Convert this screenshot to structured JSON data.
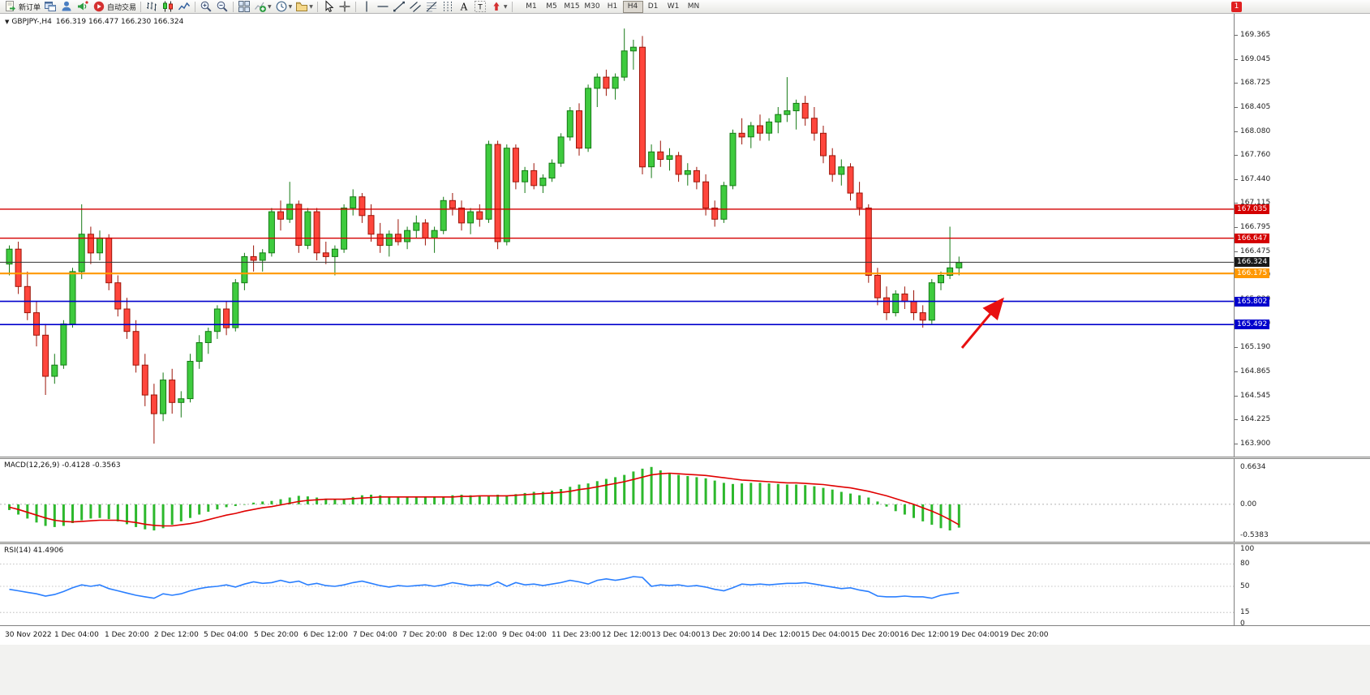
{
  "toolbar": {
    "badge": "1",
    "items": [
      {
        "name": "new-order",
        "icon": "new-order-icon",
        "label": "新订单"
      },
      {
        "name": "charts-window",
        "icon": "charts-window-icon"
      },
      {
        "name": "market-watch",
        "icon": "market-watch-icon"
      },
      {
        "name": "news",
        "icon": "news-icon"
      },
      {
        "name": "auto-trading",
        "icon": "auto-trading-icon",
        "label": "自动交易"
      },
      {
        "sep": true
      },
      {
        "name": "bar-chart-mode",
        "icon": "bar-chart-icon"
      },
      {
        "name": "candlestick-mode",
        "icon": "candlestick-icon"
      },
      {
        "name": "line-chart-mode",
        "icon": "line-chart-icon"
      },
      {
        "sep": true
      },
      {
        "name": "zoom-in",
        "icon": "zoom-in-icon"
      },
      {
        "name": "zoom-out",
        "icon": "zoom-out-icon"
      },
      {
        "sep": true
      },
      {
        "name": "tile-windows",
        "icon": "tile-windows-icon"
      },
      {
        "name": "indicators",
        "icon": "indicators-icon",
        "dropdown": true
      },
      {
        "name": "periods",
        "icon": "periods-icon",
        "dropdown": true
      },
      {
        "name": "templates",
        "icon": "templates-icon",
        "dropdown": true
      },
      {
        "sep": true
      },
      {
        "name": "cursor",
        "icon": "cursor-icon"
      },
      {
        "name": "crosshair",
        "icon": "crosshair-icon"
      },
      {
        "sep": true
      },
      {
        "name": "vertical-line",
        "icon": "vertical-line-icon"
      },
      {
        "name": "horizontal-line",
        "icon": "horizontal-line-icon"
      },
      {
        "name": "trendline",
        "icon": "trendline-icon"
      },
      {
        "name": "equidistant-channel",
        "icon": "channel-icon"
      },
      {
        "name": "fibonacci",
        "icon": "fibonacci-icon"
      },
      {
        "name": "cycle-lines",
        "icon": "cycle-lines-icon"
      },
      {
        "name": "text",
        "icon": "text-icon",
        "glyph": "A"
      },
      {
        "name": "text-label",
        "icon": "text-label-icon",
        "glyph": "T"
      },
      {
        "name": "arrows",
        "icon": "arrows-icon",
        "dropdown": true
      },
      {
        "sep": true
      }
    ],
    "timeframes": [
      "M1",
      "M5",
      "M15",
      "M30",
      "H1",
      "H4",
      "D1",
      "W1",
      "MN"
    ],
    "active_timeframe": "H4"
  },
  "chart_data": [
    {
      "type": "candlestick",
      "symbol": "GBPJPY-,H4",
      "ohlc_display": "166.319 166.477 166.230 166.324",
      "collapse_glyph": "▼",
      "colors": {
        "up": "#3ecb3e",
        "up_border": "#157a15",
        "down": "#ff463c",
        "down_border": "#9c1408",
        "background": "#ffffff"
      },
      "price_ticks": [
        "169.365",
        "169.045",
        "168.725",
        "168.405",
        "168.080",
        "167.760",
        "167.440",
        "167.115",
        "166.795",
        "166.475",
        "166.150",
        "165.830",
        "165.510",
        "165.190",
        "164.865",
        "164.545",
        "164.225",
        "163.900"
      ],
      "price_labels": [
        {
          "value": "167.035",
          "color": "#d40000"
        },
        {
          "value": "166.647",
          "color": "#d40000"
        },
        {
          "value": "166.324",
          "color": "#1a1a1a"
        },
        {
          "value": "166.175",
          "color": "#ff9800"
        },
        {
          "value": "165.802",
          "color": "#0000cd"
        },
        {
          "value": "165.492",
          "color": "#0000cd"
        }
      ],
      "hlines": [
        {
          "price": 167.035,
          "color": "#d40000",
          "width": 1.4
        },
        {
          "price": 166.647,
          "color": "#d40000",
          "width": 1.4
        },
        {
          "price": 166.324,
          "color": "#333333",
          "width": 1
        },
        {
          "price": 166.175,
          "color": "#ff9800",
          "width": 2.2
        },
        {
          "price": 165.802,
          "color": "#0000cd",
          "width": 1.6
        },
        {
          "price": 165.492,
          "color": "#0000cd",
          "width": 1.6
        }
      ],
      "arrow_annotation": {
        "color": "#e81010",
        "direction": "up-right"
      },
      "time_labels": [
        "30 Nov 2022",
        "1 Dec 04:00",
        "1 Dec 20:00",
        "2 Dec 12:00",
        "5 Dec 04:00",
        "5 Dec 20:00",
        "6 Dec 12:00",
        "7 Dec 04:00",
        "7 Dec 20:00",
        "8 Dec 12:00",
        "9 Dec 04:00",
        "11 Dec 23:00",
        "12 Dec 12:00",
        "13 Dec 04:00",
        "13 Dec 20:00",
        "14 Dec 12:00",
        "15 Dec 04:00",
        "15 Dec 20:00",
        "16 Dec 12:00",
        "19 Dec 04:00",
        "19 Dec 20:00"
      ],
      "candles": [
        [
          166.3,
          166.55,
          166.15,
          166.5
        ],
        [
          166.5,
          166.6,
          165.9,
          166.0
        ],
        [
          166.0,
          166.2,
          165.55,
          165.65
        ],
        [
          165.65,
          165.8,
          165.2,
          165.35
        ],
        [
          165.35,
          165.5,
          164.55,
          164.8
        ],
        [
          164.8,
          165.1,
          164.7,
          164.95
        ],
        [
          164.95,
          165.55,
          164.9,
          165.5
        ],
        [
          165.5,
          166.25,
          165.45,
          166.2
        ],
        [
          166.2,
          167.1,
          166.1,
          166.7
        ],
        [
          166.7,
          166.8,
          166.3,
          166.45
        ],
        [
          166.45,
          166.75,
          166.35,
          166.65
        ],
        [
          166.65,
          166.7,
          165.95,
          166.05
        ],
        [
          166.05,
          166.15,
          165.6,
          165.7
        ],
        [
          165.7,
          165.85,
          165.3,
          165.4
        ],
        [
          165.4,
          165.55,
          164.85,
          164.95
        ],
        [
          164.95,
          165.1,
          164.4,
          164.55
        ],
        [
          164.55,
          164.7,
          163.9,
          164.3
        ],
        [
          164.3,
          164.85,
          164.2,
          164.75
        ],
        [
          164.75,
          164.9,
          164.3,
          164.45
        ],
        [
          164.45,
          164.6,
          164.25,
          164.5
        ],
        [
          164.5,
          165.1,
          164.45,
          165.0
        ],
        [
          165.0,
          165.35,
          164.9,
          165.25
        ],
        [
          165.25,
          165.45,
          165.1,
          165.4
        ],
        [
          165.4,
          165.75,
          165.3,
          165.7
        ],
        [
          165.7,
          165.8,
          165.35,
          165.45
        ],
        [
          165.45,
          166.1,
          165.4,
          166.05
        ],
        [
          166.05,
          166.45,
          165.95,
          166.4
        ],
        [
          166.4,
          166.55,
          166.2,
          166.35
        ],
        [
          166.35,
          166.5,
          166.2,
          166.45
        ],
        [
          166.45,
          167.05,
          166.4,
          167.0
        ],
        [
          167.0,
          167.15,
          166.75,
          166.9
        ],
        [
          166.9,
          167.4,
          166.85,
          167.1
        ],
        [
          167.1,
          167.15,
          166.45,
          166.55
        ],
        [
          166.55,
          167.05,
          166.5,
          167.0
        ],
        [
          167.0,
          167.05,
          166.35,
          166.45
        ],
        [
          166.45,
          166.6,
          166.3,
          166.4
        ],
        [
          166.4,
          166.55,
          166.15,
          166.5
        ],
        [
          166.5,
          167.1,
          166.45,
          167.05
        ],
        [
          167.05,
          167.3,
          166.95,
          167.2
        ],
        [
          167.2,
          167.25,
          166.85,
          166.95
        ],
        [
          166.95,
          167.1,
          166.6,
          166.7
        ],
        [
          166.7,
          166.85,
          166.45,
          166.55
        ],
        [
          166.55,
          166.75,
          166.4,
          166.7
        ],
        [
          166.7,
          166.9,
          166.55,
          166.6
        ],
        [
          166.6,
          166.8,
          166.5,
          166.75
        ],
        [
          166.75,
          166.95,
          166.65,
          166.85
        ],
        [
          166.85,
          166.9,
          166.55,
          166.65
        ],
        [
          166.65,
          166.8,
          166.45,
          166.75
        ],
        [
          166.75,
          167.2,
          166.7,
          167.15
        ],
        [
          167.15,
          167.25,
          166.95,
          167.05
        ],
        [
          167.05,
          167.15,
          166.75,
          166.85
        ],
        [
          166.85,
          167.05,
          166.7,
          167.0
        ],
        [
          167.0,
          167.1,
          166.8,
          166.9
        ],
        [
          166.9,
          167.95,
          166.85,
          167.9
        ],
        [
          167.9,
          167.95,
          166.5,
          166.6
        ],
        [
          166.6,
          167.9,
          166.55,
          167.85
        ],
        [
          167.85,
          167.9,
          167.3,
          167.4
        ],
        [
          167.4,
          167.6,
          167.25,
          167.55
        ],
        [
          167.55,
          167.65,
          167.3,
          167.35
        ],
        [
          167.35,
          167.5,
          167.25,
          167.45
        ],
        [
          167.45,
          167.7,
          167.4,
          167.65
        ],
        [
          167.65,
          168.05,
          167.6,
          168.0
        ],
        [
          168.0,
          168.4,
          167.95,
          168.35
        ],
        [
          168.35,
          168.45,
          167.75,
          167.85
        ],
        [
          167.85,
          168.7,
          167.8,
          168.65
        ],
        [
          168.65,
          168.85,
          168.4,
          168.8
        ],
        [
          168.8,
          168.9,
          168.55,
          168.65
        ],
        [
          168.65,
          168.85,
          168.5,
          168.8
        ],
        [
          168.8,
          169.45,
          168.75,
          169.15
        ],
        [
          169.15,
          169.3,
          168.9,
          169.2
        ],
        [
          169.2,
          169.35,
          167.5,
          167.6
        ],
        [
          167.6,
          167.9,
          167.45,
          167.8
        ],
        [
          167.8,
          167.95,
          167.6,
          167.7
        ],
        [
          167.7,
          167.85,
          167.55,
          167.75
        ],
        [
          167.75,
          167.8,
          167.4,
          167.5
        ],
        [
          167.5,
          167.65,
          167.35,
          167.55
        ],
        [
          167.55,
          167.6,
          167.3,
          167.4
        ],
        [
          167.4,
          167.5,
          166.95,
          167.05
        ],
        [
          167.05,
          167.15,
          166.8,
          166.9
        ],
        [
          166.9,
          167.4,
          166.85,
          167.35
        ],
        [
          167.35,
          168.1,
          167.3,
          168.05
        ],
        [
          168.05,
          168.25,
          167.9,
          168.0
        ],
        [
          168.0,
          168.2,
          167.85,
          168.15
        ],
        [
          168.15,
          168.3,
          167.95,
          168.05
        ],
        [
          168.05,
          168.25,
          167.95,
          168.2
        ],
        [
          168.2,
          168.4,
          168.05,
          168.3
        ],
        [
          168.3,
          168.8,
          168.2,
          168.35
        ],
        [
          168.35,
          168.5,
          168.1,
          168.45
        ],
        [
          168.45,
          168.55,
          168.15,
          168.25
        ],
        [
          168.25,
          168.4,
          167.95,
          168.05
        ],
        [
          168.05,
          168.15,
          167.65,
          167.75
        ],
        [
          167.75,
          167.85,
          167.4,
          167.5
        ],
        [
          167.5,
          167.7,
          167.35,
          167.6
        ],
        [
          167.6,
          167.65,
          167.15,
          167.25
        ],
        [
          167.25,
          167.4,
          166.95,
          167.05
        ],
        [
          167.05,
          167.1,
          166.05,
          166.15
        ],
        [
          166.15,
          166.25,
          165.75,
          165.85
        ],
        [
          165.85,
          166.0,
          165.55,
          165.65
        ],
        [
          165.65,
          165.95,
          165.6,
          165.9
        ],
        [
          165.9,
          166.0,
          165.7,
          165.8
        ],
        [
          165.8,
          165.95,
          165.55,
          165.65
        ],
        [
          165.65,
          165.75,
          165.45,
          165.55
        ],
        [
          165.55,
          166.1,
          165.5,
          166.05
        ],
        [
          166.05,
          166.2,
          165.95,
          166.15
        ],
        [
          166.15,
          166.8,
          166.1,
          166.25
        ],
        [
          166.25,
          166.4,
          166.15,
          166.32
        ]
      ]
    },
    {
      "type": "bar",
      "name": "MACD",
      "label": "MACD(12,26,9) -0.4128 -0.3563",
      "scale_labels": [
        "0.6634",
        "0.00",
        "-0.5383"
      ],
      "histogram_color": "#2db82d",
      "signal_color": "#e00000",
      "values": [
        -0.1,
        -0.18,
        -0.25,
        -0.32,
        -0.38,
        -0.4,
        -0.38,
        -0.33,
        -0.28,
        -0.25,
        -0.24,
        -0.26,
        -0.3,
        -0.35,
        -0.4,
        -0.44,
        -0.46,
        -0.42,
        -0.36,
        -0.3,
        -0.24,
        -0.18,
        -0.13,
        -0.09,
        -0.05,
        -0.03,
        0.0,
        0.03,
        0.05,
        0.06,
        0.09,
        0.12,
        0.15,
        0.14,
        0.12,
        0.1,
        0.09,
        0.1,
        0.13,
        0.16,
        0.17,
        0.16,
        0.14,
        0.13,
        0.12,
        0.12,
        0.13,
        0.12,
        0.13,
        0.16,
        0.17,
        0.16,
        0.15,
        0.14,
        0.17,
        0.16,
        0.18,
        0.2,
        0.22,
        0.22,
        0.24,
        0.27,
        0.31,
        0.35,
        0.37,
        0.41,
        0.45,
        0.48,
        0.52,
        0.58,
        0.63,
        0.66,
        0.6,
        0.55,
        0.52,
        0.5,
        0.48,
        0.46,
        0.42,
        0.38,
        0.36,
        0.37,
        0.38,
        0.38,
        0.37,
        0.36,
        0.35,
        0.35,
        0.34,
        0.32,
        0.29,
        0.26,
        0.22,
        0.19,
        0.16,
        0.12,
        0.05,
        -0.04,
        -0.12,
        -0.18,
        -0.24,
        -0.3,
        -0.36,
        -0.42,
        -0.46,
        -0.41
      ],
      "signal": [
        -0.05,
        -0.09,
        -0.14,
        -0.19,
        -0.24,
        -0.28,
        -0.3,
        -0.31,
        -0.3,
        -0.29,
        -0.28,
        -0.28,
        -0.28,
        -0.3,
        -0.32,
        -0.35,
        -0.37,
        -0.38,
        -0.38,
        -0.36,
        -0.34,
        -0.31,
        -0.27,
        -0.23,
        -0.19,
        -0.16,
        -0.12,
        -0.09,
        -0.06,
        -0.04,
        -0.01,
        0.02,
        0.05,
        0.07,
        0.08,
        0.09,
        0.09,
        0.09,
        0.1,
        0.11,
        0.12,
        0.13,
        0.13,
        0.13,
        0.13,
        0.13,
        0.13,
        0.13,
        0.13,
        0.13,
        0.14,
        0.14,
        0.15,
        0.15,
        0.15,
        0.15,
        0.16,
        0.17,
        0.18,
        0.19,
        0.2,
        0.21,
        0.23,
        0.26,
        0.28,
        0.31,
        0.34,
        0.37,
        0.4,
        0.44,
        0.48,
        0.52,
        0.54,
        0.55,
        0.54,
        0.53,
        0.52,
        0.51,
        0.49,
        0.47,
        0.45,
        0.43,
        0.42,
        0.41,
        0.4,
        0.39,
        0.38,
        0.38,
        0.37,
        0.36,
        0.35,
        0.33,
        0.31,
        0.29,
        0.26,
        0.23,
        0.19,
        0.15,
        0.1,
        0.05,
        0.0,
        -0.06,
        -0.12,
        -0.19,
        -0.27,
        -0.36
      ]
    },
    {
      "type": "line",
      "name": "RSI",
      "label": "RSI(14) 41.4906",
      "scale_labels": [
        "100",
        "80",
        "50",
        "15",
        "0"
      ],
      "levels": [
        80,
        50,
        15
      ],
      "line_color": "#2a7fff",
      "values": [
        46,
        44,
        42,
        40,
        37,
        39,
        43,
        48,
        52,
        50,
        52,
        47,
        44,
        41,
        38,
        36,
        34,
        40,
        38,
        40,
        44,
        47,
        49,
        50,
        52,
        49,
        53,
        56,
        54,
        55,
        58,
        55,
        57,
        52,
        54,
        51,
        50,
        52,
        55,
        57,
        54,
        51,
        49,
        51,
        50,
        51,
        52,
        50,
        52,
        55,
        53,
        51,
        52,
        51,
        56,
        50,
        55,
        52,
        53,
        51,
        53,
        55,
        58,
        56,
        53,
        58,
        60,
        58,
        60,
        63,
        62,
        50,
        52,
        51,
        52,
        50,
        51,
        49,
        46,
        44,
        48,
        53,
        52,
        53,
        52,
        53,
        54,
        54,
        55,
        53,
        51,
        49,
        47,
        48,
        45,
        43,
        37,
        36,
        36,
        37,
        36,
        36,
        34,
        38,
        40,
        41.49
      ]
    }
  ]
}
